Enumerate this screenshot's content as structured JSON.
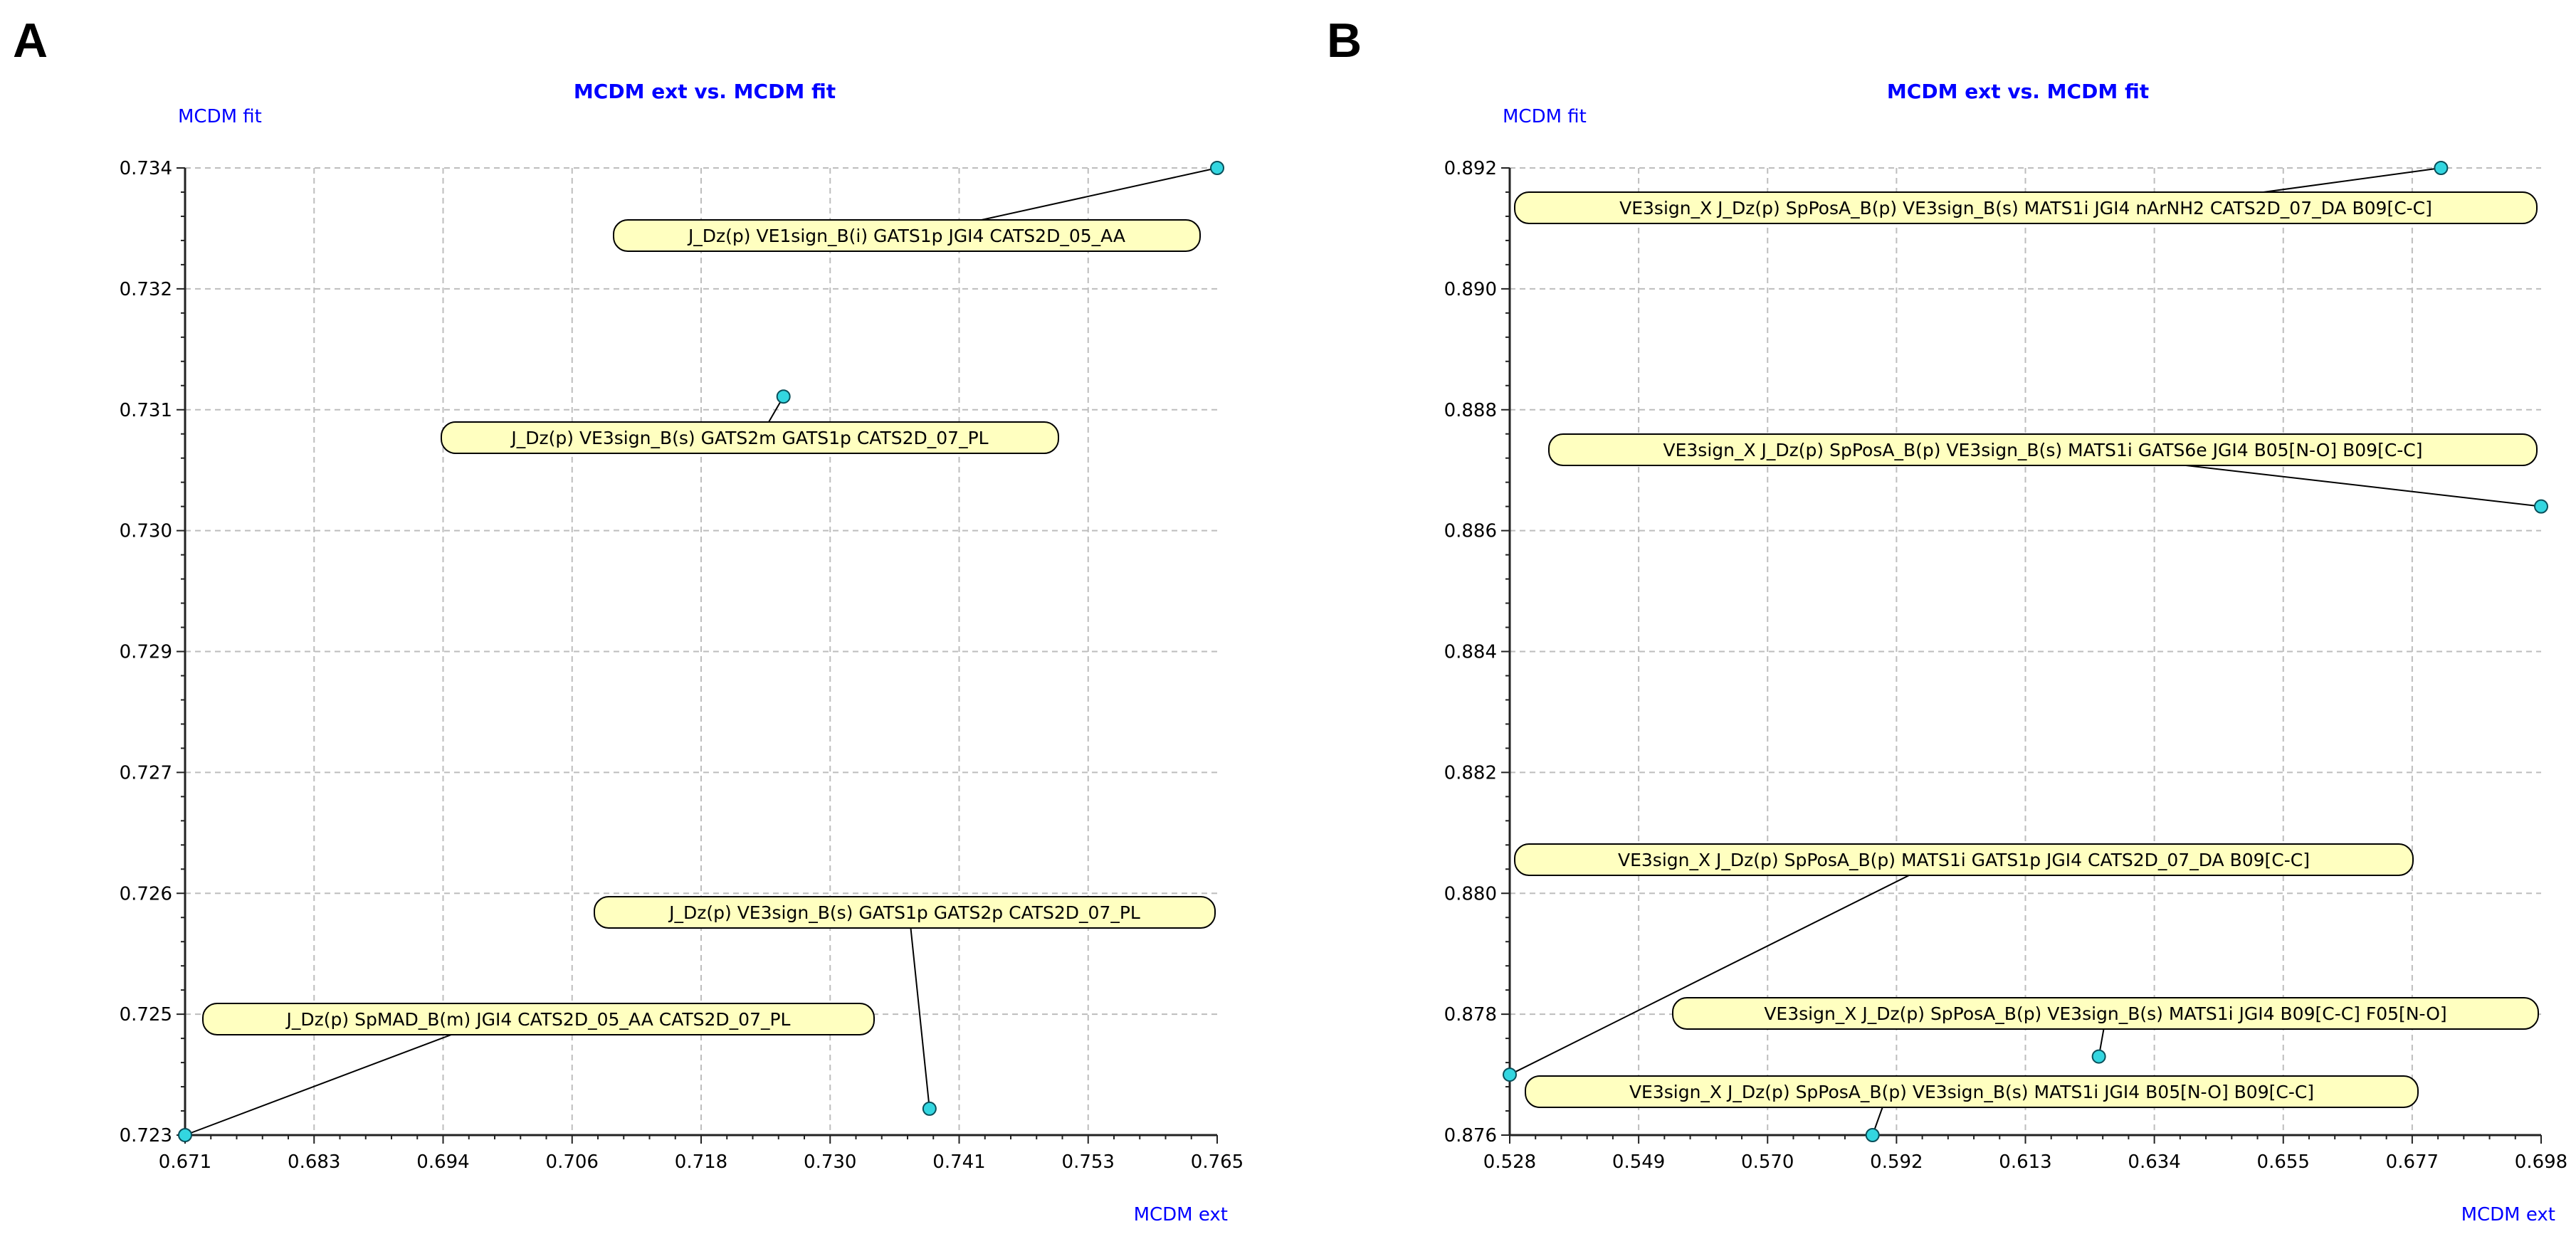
{
  "chart_data": [
    {
      "type": "scatter",
      "panel": "A",
      "title": "MCDM ext vs. MCDM fit",
      "xlabel": "MCDM ext",
      "ylabel": "MCDM fit",
      "xlim": [
        0.671,
        0.765
      ],
      "ylim": [
        0.723,
        0.734
      ],
      "xticks": [
        "0.671",
        "0.683",
        "0.694",
        "0.706",
        "0.718",
        "0.730",
        "0.741",
        "0.753",
        "0.765"
      ],
      "yticks": [
        "0.723",
        "0.725",
        "0.726",
        "0.727",
        "0.729",
        "0.730",
        "0.731",
        "0.732",
        "0.734"
      ],
      "grid": true,
      "points": [
        {
          "x": 0.765,
          "y": 0.734,
          "label": "J_Dz(p)  VE1sign_B(i)  GATS1p  JGI4  CATS2D_05_AA"
        },
        {
          "x": 0.7255,
          "y": 0.7314,
          "label": "J_Dz(p)  VE3sign_B(s)  GATS2m  GATS1p  CATS2D_07_PL"
        },
        {
          "x": 0.7388,
          "y": 0.7233,
          "label": "J_Dz(p)  VE3sign_B(s)  GATS1p  GATS2p  CATS2D_07_PL"
        },
        {
          "x": 0.671,
          "y": 0.723,
          "label": "J_Dz(p)  SpMAD_B(m)  JGI4  CATS2D_05_AA  CATS2D_07_PL"
        }
      ]
    },
    {
      "type": "scatter",
      "panel": "B",
      "title": "MCDM ext vs. MCDM fit",
      "xlabel": "MCDM ext",
      "ylabel": "MCDM fit",
      "xlim": [
        0.528,
        0.698
      ],
      "ylim": [
        0.876,
        0.892
      ],
      "xticks": [
        "0.528",
        "0.549",
        "0.570",
        "0.592",
        "0.613",
        "0.634",
        "0.655",
        "0.677",
        "0.698"
      ],
      "yticks": [
        "0.876",
        "0.878",
        "0.880",
        "0.882",
        "0.884",
        "0.886",
        "0.888",
        "0.890",
        "0.892"
      ],
      "grid": true,
      "points": [
        {
          "x": 0.6815,
          "y": 0.892,
          "label": "VE3sign_X  J_Dz(p)  SpPosA_B(p)  VE3sign_B(s)  MATS1i  JGI4  nArNH2  CATS2D_07_DA  B09[C-C]"
        },
        {
          "x": 0.698,
          "y": 0.8864,
          "label": "VE3sign_X  J_Dz(p)  SpPosA_B(p)  VE3sign_B(s)  MATS1i  GATS6e  JGI4  B05[N-O]  B09[C-C]"
        },
        {
          "x": 0.528,
          "y": 0.877,
          "label": "VE3sign_X  J_Dz(p)  SpPosA_B(p)  MATS1i  GATS1p  JGI4  CATS2D_07_DA  B09[C-C]"
        },
        {
          "x": 0.6251,
          "y": 0.8773,
          "label": "VE3sign_X  J_Dz(p)  SpPosA_B(p)  VE3sign_B(s)  MATS1i  JGI4  B09[C-C]  F05[N-O]"
        },
        {
          "x": 0.5878,
          "y": 0.876,
          "label": "VE3sign_X  J_Dz(p)  SpPosA_B(p)  VE3sign_B(s)  MATS1i  JGI4  B05[N-O]  B09[C-C]"
        }
      ]
    }
  ]
}
